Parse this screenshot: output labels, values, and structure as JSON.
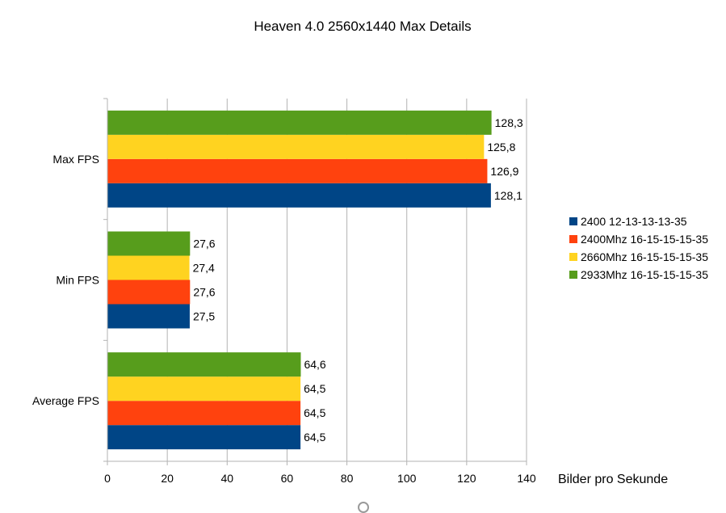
{
  "chart_data": {
    "type": "bar",
    "orientation": "horizontal",
    "title": "Heaven 4.0 2560x1440 Max Details",
    "xlabel": "Bilder pro Sekunde",
    "ylabel": "",
    "xlim": [
      0,
      140
    ],
    "xticks": [
      0,
      20,
      40,
      60,
      80,
      100,
      120,
      140
    ],
    "grid": true,
    "legend_position": "right",
    "categories": [
      "Max FPS",
      "Min FPS",
      "Average FPS"
    ],
    "series": [
      {
        "name": "2400 12-13-13-13-35",
        "color": "#004586",
        "values": [
          128.1,
          27.5,
          64.5
        ],
        "labels": [
          "128,1",
          "27,5",
          "64,5"
        ]
      },
      {
        "name": "2400Mhz 16-15-15-15-35",
        "color": "#ff420e",
        "values": [
          126.9,
          27.6,
          64.5
        ],
        "labels": [
          "126,9",
          "27,6",
          "64,5"
        ]
      },
      {
        "name": "2660Mhz 16-15-15-15-35",
        "color": "#ffd320",
        "values": [
          125.8,
          27.4,
          64.5
        ],
        "labels": [
          "125,8",
          "27,4",
          "64,5"
        ]
      },
      {
        "name": "2933Mhz 16-15-15-15-35",
        "color": "#579d1c",
        "values": [
          128.3,
          27.6,
          64.6
        ],
        "labels": [
          "128,3",
          "27,6",
          "64,6"
        ]
      }
    ]
  }
}
